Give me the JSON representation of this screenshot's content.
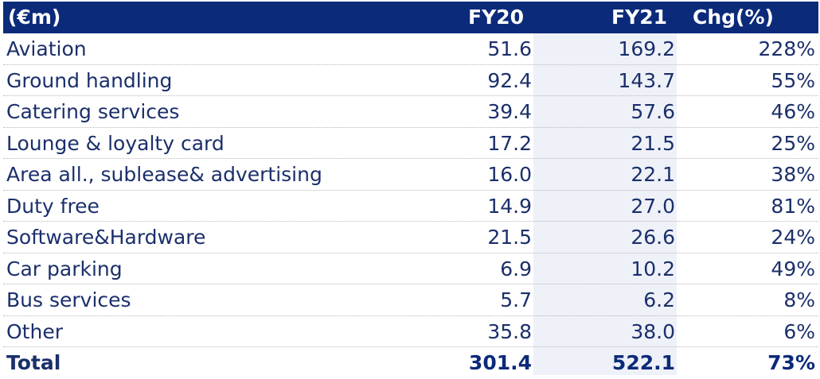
{
  "header": {
    "label": "(€m)",
    "fy20": "FY20",
    "fy21": "FY21",
    "chg": "Chg(%)"
  },
  "rows": [
    {
      "label": "Aviation",
      "fy20": "51.6",
      "fy21": "169.2",
      "chg": "228%"
    },
    {
      "label": "Ground handling",
      "fy20": "92.4",
      "fy21": "143.7",
      "chg": "55%"
    },
    {
      "label": "Catering services",
      "fy20": "39.4",
      "fy21": "57.6",
      "chg": "46%"
    },
    {
      "label": "Lounge & loyalty card",
      "fy20": "17.2",
      "fy21": "21.5",
      "chg": "25%"
    },
    {
      "label": "Area all., sublease& advertising",
      "fy20": "16.0",
      "fy21": "22.1",
      "chg": "38%"
    },
    {
      "label": "Duty free",
      "fy20": "14.9",
      "fy21": "27.0",
      "chg": "81%"
    },
    {
      "label": "Software&Hardware",
      "fy20": "21.5",
      "fy21": "26.6",
      "chg": "24%"
    },
    {
      "label": "Car parking",
      "fy20": "6.9",
      "fy21": "10.2",
      "chg": "49%"
    },
    {
      "label": "Bus services",
      "fy20": "5.7",
      "fy21": "6.2",
      "chg": "8%"
    },
    {
      "label": "Other",
      "fy20": "35.8",
      "fy21": "38.0",
      "chg": "6%"
    }
  ],
  "total": {
    "label": "Total",
    "fy20": "301.4",
    "fy21": "522.1",
    "chg": "73%"
  },
  "colors": {
    "header_bg": "#0c2a7a",
    "text": "#1b2f6b",
    "fy21_shade": "#eef1f8"
  }
}
